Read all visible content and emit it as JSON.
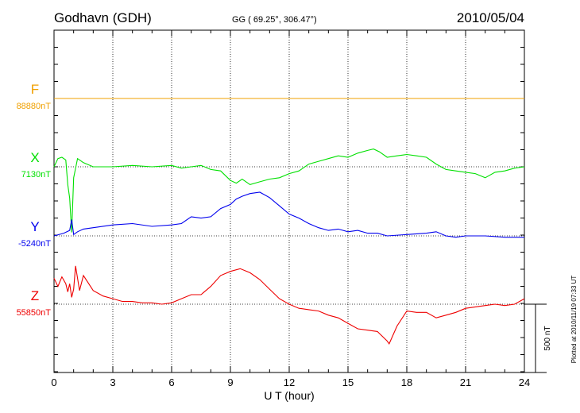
{
  "header": {
    "station": "Godhavn (GDH)",
    "coords": "GG ( 69.25°, 306.47°)",
    "date": "2010/05/04"
  },
  "side_note": "Plotted at 2010/11/19 07:33 UT",
  "scale_bar_label": "500 nT",
  "chart_data": {
    "type": "line",
    "xlabel": "U T (hour)",
    "xlim": [
      0,
      24
    ],
    "xticks": [
      0,
      3,
      6,
      9,
      12,
      15,
      18,
      21,
      24
    ],
    "grid": true,
    "scale_bar_nT": 500,
    "series": [
      {
        "name": "F",
        "baseline_label": "88880nT",
        "baseline": 88880,
        "color": "#f0a000",
        "x": [
          0,
          24
        ],
        "y": [
          88880,
          88880
        ]
      },
      {
        "name": "X",
        "baseline_label": "7130nT",
        "baseline": 7130,
        "color": "#00e000",
        "x": [
          0,
          0.2,
          0.4,
          0.6,
          0.7,
          0.8,
          0.9,
          1.0,
          1.2,
          1.5,
          2,
          3,
          4,
          5,
          6,
          6.5,
          7,
          7.5,
          8,
          8.5,
          9,
          9.3,
          9.6,
          10,
          10.5,
          11,
          11.5,
          12,
          12.5,
          13,
          13.5,
          14,
          14.5,
          15,
          15.5,
          16,
          16.3,
          16.6,
          17,
          17.5,
          18,
          18.5,
          19,
          19.5,
          20,
          20.5,
          21,
          21.5,
          22,
          22.5,
          23,
          23.5,
          24
        ],
        "y": [
          7130,
          7190,
          7200,
          7180,
          7000,
          6900,
          6650,
          7050,
          7190,
          7160,
          7130,
          7130,
          7140,
          7130,
          7140,
          7120,
          7130,
          7140,
          7110,
          7100,
          7030,
          7010,
          7040,
          7000,
          7020,
          7040,
          7050,
          7080,
          7100,
          7150,
          7170,
          7190,
          7210,
          7200,
          7230,
          7250,
          7260,
          7240,
          7200,
          7210,
          7220,
          7210,
          7200,
          7150,
          7110,
          7100,
          7090,
          7080,
          7050,
          7090,
          7100,
          7120,
          7130
        ]
      },
      {
        "name": "Y",
        "baseline_label": "-5240nT",
        "baseline": -5240,
        "color": "#0000ee",
        "x": [
          0,
          0.5,
          0.8,
          0.9,
          1.0,
          1.2,
          1.5,
          2,
          3,
          4,
          5,
          6,
          6.5,
          7,
          7.5,
          8,
          8.5,
          9,
          9.3,
          9.6,
          10,
          10.5,
          11,
          11.5,
          12,
          12.5,
          13,
          13.5,
          14,
          14.5,
          15,
          15.5,
          16,
          16.5,
          17,
          18,
          19,
          19.5,
          20,
          20.5,
          21,
          22,
          23,
          24
        ],
        "y": [
          -5240,
          -5220,
          -5200,
          -5120,
          -5230,
          -5210,
          -5190,
          -5180,
          -5160,
          -5150,
          -5170,
          -5160,
          -5150,
          -5100,
          -5110,
          -5100,
          -5040,
          -5010,
          -4970,
          -4950,
          -4930,
          -4920,
          -4960,
          -5020,
          -5080,
          -5110,
          -5150,
          -5180,
          -5200,
          -5190,
          -5210,
          -5200,
          -5220,
          -5220,
          -5240,
          -5230,
          -5220,
          -5210,
          -5240,
          -5250,
          -5240,
          -5240,
          -5250,
          -5250
        ]
      },
      {
        "name": "Z",
        "baseline_label": "55850nT",
        "baseline": 55850,
        "color": "#ee0000",
        "x": [
          0,
          0.2,
          0.4,
          0.6,
          0.7,
          0.8,
          0.9,
          1.0,
          1.1,
          1.3,
          1.5,
          2,
          2.5,
          3,
          3.5,
          4,
          4.5,
          5,
          5.5,
          6,
          6.5,
          7,
          7.5,
          8,
          8.5,
          9,
          9.5,
          10,
          10.5,
          11,
          11.5,
          12,
          12.5,
          13,
          13.5,
          14,
          14.5,
          15,
          15.5,
          16,
          16.5,
          17,
          17.1,
          17.5,
          18,
          18.5,
          19,
          19.5,
          20,
          20.5,
          21,
          21.5,
          22,
          22.5,
          23,
          23.5,
          24
        ],
        "y": [
          56040,
          55980,
          56050,
          56000,
          55940,
          56000,
          55900,
          55960,
          56130,
          55950,
          56060,
          55950,
          55910,
          55890,
          55870,
          55870,
          55860,
          55860,
          55850,
          55860,
          55890,
          55920,
          55920,
          55980,
          56060,
          56090,
          56110,
          56080,
          56030,
          55960,
          55890,
          55850,
          55820,
          55810,
          55800,
          55770,
          55750,
          55710,
          55670,
          55660,
          55650,
          55580,
          55560,
          55690,
          55800,
          55790,
          55790,
          55750,
          55770,
          55790,
          55820,
          55830,
          55840,
          55850,
          55840,
          55850,
          55890
        ]
      }
    ]
  }
}
